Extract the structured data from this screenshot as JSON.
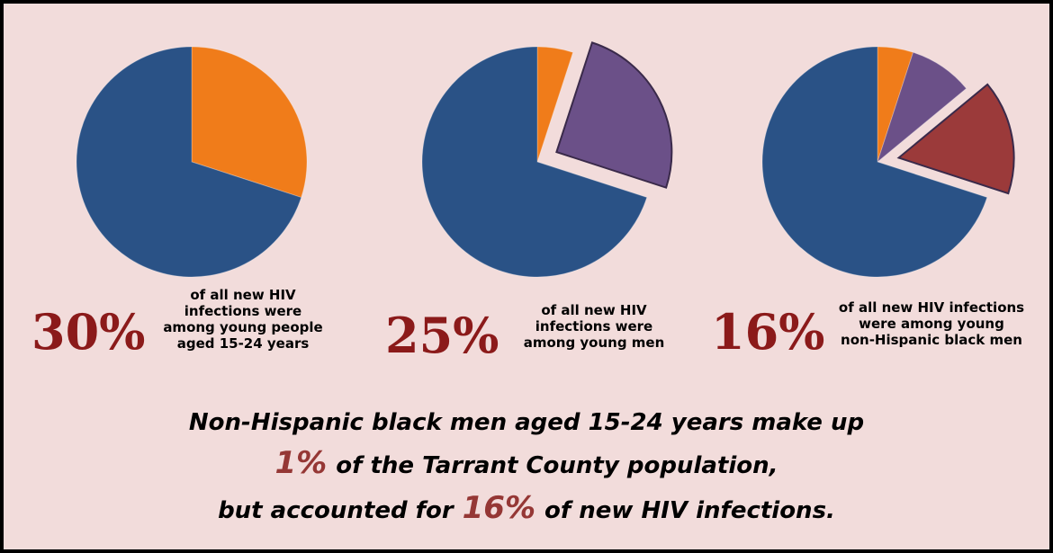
{
  "chart_data": [
    {
      "type": "pie",
      "values": [
        30,
        70
      ],
      "colors": [
        "#f07c1a",
        "#2a5286"
      ],
      "explode": [
        false,
        false
      ],
      "stat": "30%",
      "caption": [
        "of all new HIV",
        "infections were",
        "among young people",
        "aged 15-24 years"
      ]
    },
    {
      "type": "pie",
      "values": [
        5,
        25,
        70
      ],
      "colors": [
        "#f07c1a",
        "#6b5088",
        "#2a5286"
      ],
      "explode": [
        false,
        true,
        false
      ],
      "stat": "25%",
      "caption": [
        "of all new HIV",
        "infections were",
        "among young men"
      ]
    },
    {
      "type": "pie",
      "values": [
        5,
        9,
        16,
        70
      ],
      "colors": [
        "#f07c1a",
        "#6b5088",
        "#9b3a3a",
        "#2a5286"
      ],
      "explode": [
        false,
        false,
        true,
        false
      ],
      "stat": "16%",
      "caption": [
        "of all new HIV infections",
        "were among young",
        "non-Hispanic black men"
      ]
    }
  ],
  "footer": {
    "line1": "Non-Hispanic black men aged 15-24 years make up",
    "line2": {
      "highlight": "1%",
      "text": "of the Tarrant County population,"
    },
    "line3": {
      "text": "but accounted for",
      "highlight": "16%",
      "rest": "of new HIV infections."
    }
  }
}
